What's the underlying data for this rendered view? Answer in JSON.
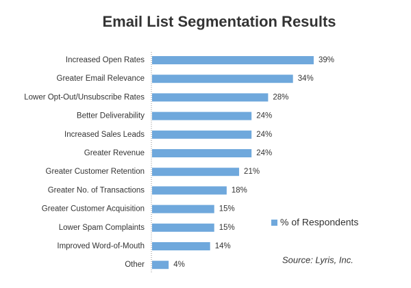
{
  "chart_data": {
    "type": "bar",
    "orientation": "horizontal",
    "title": "Email List Segmentation Results",
    "categories": [
      "Increased Open Rates",
      "Greater Email Relevance",
      "Lower Opt-Out/Unsubscribe Rates",
      "Better Deliverability",
      "Increased Sales Leads",
      "Greater Revenue",
      "Greater Customer Retention",
      "Greater No. of Transactions",
      "Greater Customer Acquisition",
      "Lower Spam Complaints",
      "Improved Word-of-Mouth",
      "Other"
    ],
    "series": [
      {
        "name": "% of Respondents",
        "color": "#6fa8dc",
        "values": [
          39,
          34,
          28,
          24,
          24,
          24,
          21,
          18,
          15,
          15,
          14,
          4
        ],
        "value_labels": [
          "39%",
          "34%",
          "28%",
          "24%",
          "24%",
          "24%",
          "21%",
          "18%",
          "15%",
          "15%",
          "14%",
          "4%"
        ]
      }
    ],
    "annotation": "Source: Lyris, Inc."
  }
}
